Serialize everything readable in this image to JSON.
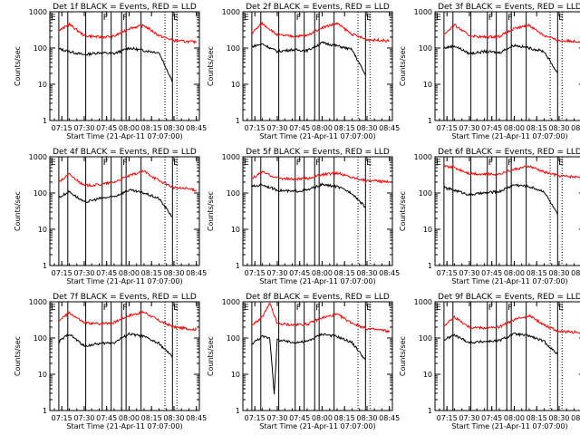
{
  "figure": {
    "background": "#ffffff",
    "axis_color": "#000000"
  },
  "shared": {
    "xlabel": "Start Time (21-Apr-11 07:07:00)",
    "ylabel": "Counts/sec",
    "x_ticks": [
      "07:15",
      "07:30",
      "07:45",
      "08:00",
      "08:15",
      "08:30",
      "08:45"
    ],
    "y_ticks": [
      "1",
      "10",
      "100",
      "1000"
    ],
    "xlim": [
      "07:07",
      "08:47"
    ],
    "ylim": [
      1,
      1000
    ],
    "y_scale": "log",
    "grid": false,
    "series_colors": {
      "events": "#000000",
      "lld": "#ff0000"
    }
  },
  "chart_data": [
    {
      "type": "line",
      "title": "Det 1f BLACK = Events, RED = LLD",
      "markers": [
        {
          "label": "E",
          "time": "07:07"
        },
        {
          "label": "F",
          "time": "07:42"
        },
        {
          "label": "F",
          "time": "07:55"
        },
        {
          "label": "E",
          "time": "08:29"
        }
      ],
      "vertical_lines": [
        "07:13",
        "07:19",
        "07:31",
        "07:42",
        "07:48",
        "07:55",
        "07:58",
        "08:08",
        "08:29"
      ],
      "dotted_lines": [
        "08:24",
        "08:32"
      ],
      "series": [
        {
          "key": "events",
          "x": [
            "07:13",
            "07:20",
            "07:30",
            "07:40",
            "07:50",
            "08:00",
            "08:10",
            "08:20",
            "08:29"
          ],
          "y": [
            95,
            80,
            65,
            75,
            70,
            100,
            85,
            75,
            12
          ]
        },
        {
          "key": "lld",
          "x": [
            "07:13",
            "07:20",
            "07:30",
            "07:40",
            "07:50",
            "08:00",
            "08:10",
            "08:20",
            "08:30",
            "08:40",
            "08:45"
          ],
          "y": [
            300,
            450,
            220,
            200,
            210,
            350,
            420,
            220,
            160,
            150,
            145
          ]
        }
      ]
    },
    {
      "type": "line",
      "title": "Det 2f BLACK = Events, RED = LLD",
      "markers": [
        {
          "label": "E",
          "time": "07:07"
        },
        {
          "label": "F",
          "time": "07:42"
        },
        {
          "label": "F",
          "time": "07:55"
        },
        {
          "label": "E",
          "time": "08:29"
        }
      ],
      "vertical_lines": [
        "07:13",
        "07:19",
        "07:31",
        "07:42",
        "07:48",
        "07:55",
        "07:58",
        "08:08",
        "08:29"
      ],
      "dotted_lines": [
        "08:24",
        "08:32"
      ],
      "series": [
        {
          "key": "events",
          "x": [
            "07:13",
            "07:20",
            "07:30",
            "07:40",
            "07:50",
            "08:00",
            "08:10",
            "08:20",
            "08:29"
          ],
          "y": [
            110,
            130,
            80,
            90,
            85,
            140,
            115,
            90,
            18
          ]
        },
        {
          "key": "lld",
          "x": [
            "07:13",
            "07:20",
            "07:30",
            "07:40",
            "07:50",
            "08:00",
            "08:10",
            "08:20",
            "08:30",
            "08:40",
            "08:45"
          ],
          "y": [
            260,
            480,
            230,
            210,
            220,
            370,
            480,
            240,
            170,
            165,
            155
          ]
        }
      ]
    },
    {
      "type": "line",
      "title": "Det 3f BLACK = Events, RED = LLD",
      "markers": [
        {
          "label": "E",
          "time": "07:07"
        },
        {
          "label": "F",
          "time": "07:42"
        },
        {
          "label": "F",
          "time": "07:55"
        },
        {
          "label": "E",
          "time": "08:29"
        }
      ],
      "vertical_lines": [
        "07:13",
        "07:19",
        "07:31",
        "07:42",
        "07:48",
        "07:55",
        "07:58",
        "08:08",
        "08:29"
      ],
      "dotted_lines": [
        "08:24",
        "08:32"
      ],
      "series": [
        {
          "key": "events",
          "x": [
            "07:13",
            "07:20",
            "07:30",
            "07:40",
            "07:50",
            "08:00",
            "08:10",
            "08:20",
            "08:29"
          ],
          "y": [
            100,
            115,
            70,
            80,
            75,
            120,
            100,
            80,
            20
          ]
        },
        {
          "key": "lld",
          "x": [
            "07:13",
            "07:20",
            "07:30",
            "07:40",
            "07:50",
            "08:00",
            "08:10",
            "08:20",
            "08:30",
            "08:40",
            "08:45"
          ],
          "y": [
            240,
            430,
            220,
            200,
            210,
            340,
            430,
            220,
            160,
            155,
            150
          ]
        }
      ]
    },
    {
      "type": "line",
      "title": "Det 4f BLACK = Events, RED = LLD",
      "markers": [
        {
          "label": "E",
          "time": "07:07"
        },
        {
          "label": "F",
          "time": "07:42"
        },
        {
          "label": "F",
          "time": "07:55"
        },
        {
          "label": "E",
          "time": "08:29"
        }
      ],
      "vertical_lines": [
        "07:13",
        "07:19",
        "07:31",
        "07:42",
        "07:48",
        "07:55",
        "07:58",
        "08:08",
        "08:29"
      ],
      "dotted_lines": [
        "08:24",
        "08:32"
      ],
      "series": [
        {
          "key": "events",
          "x": [
            "07:13",
            "07:20",
            "07:30",
            "07:40",
            "07:50",
            "08:00",
            "08:10",
            "08:20",
            "08:29"
          ],
          "y": [
            75,
            110,
            55,
            70,
            80,
            120,
            100,
            70,
            22
          ]
        },
        {
          "key": "lld",
          "x": [
            "07:13",
            "07:20",
            "07:30",
            "07:40",
            "07:50",
            "08:00",
            "08:10",
            "08:20",
            "08:30",
            "08:40",
            "08:45"
          ],
          "y": [
            200,
            330,
            160,
            170,
            200,
            300,
            400,
            220,
            140,
            130,
            120
          ]
        }
      ]
    },
    {
      "type": "line",
      "title": "Det 5f BLACK = Events, RED = LLD",
      "markers": [
        {
          "label": "E",
          "time": "07:07"
        },
        {
          "label": "F",
          "time": "07:42"
        },
        {
          "label": "F",
          "time": "07:55"
        },
        {
          "label": "E",
          "time": "08:29"
        }
      ],
      "vertical_lines": [
        "07:13",
        "07:19",
        "07:31",
        "07:42",
        "07:48",
        "07:55",
        "07:58",
        "08:08",
        "08:29"
      ],
      "dotted_lines": [
        "08:24",
        "08:32"
      ],
      "series": [
        {
          "key": "events",
          "x": [
            "07:13",
            "07:20",
            "07:30",
            "07:40",
            "07:50",
            "08:00",
            "08:10",
            "08:20",
            "08:29"
          ],
          "y": [
            150,
            170,
            120,
            110,
            120,
            170,
            150,
            100,
            40
          ]
        },
        {
          "key": "lld",
          "x": [
            "07:13",
            "07:20",
            "07:30",
            "07:40",
            "07:50",
            "08:00",
            "08:10",
            "08:20",
            "08:30",
            "08:40",
            "08:45"
          ],
          "y": [
            250,
            380,
            260,
            240,
            250,
            320,
            360,
            270,
            220,
            210,
            210
          ]
        }
      ]
    },
    {
      "type": "line",
      "title": "Det 6f BLACK = Events, RED = LLD",
      "markers": [
        {
          "label": "E",
          "time": "07:07"
        },
        {
          "label": "F",
          "time": "07:42"
        },
        {
          "label": "F",
          "time": "07:55"
        },
        {
          "label": "E",
          "time": "08:29"
        }
      ],
      "vertical_lines": [
        "07:13",
        "07:19",
        "07:31",
        "07:42",
        "07:48",
        "07:55",
        "07:58",
        "08:08",
        "08:29"
      ],
      "dotted_lines": [
        "08:24",
        "08:32"
      ],
      "series": [
        {
          "key": "events",
          "x": [
            "07:13",
            "07:20",
            "07:30",
            "07:40",
            "07:50",
            "08:00",
            "08:10",
            "08:20",
            "08:29"
          ],
          "y": [
            140,
            120,
            90,
            100,
            110,
            170,
            150,
            110,
            25
          ]
        },
        {
          "key": "lld",
          "x": [
            "07:13",
            "07:20",
            "07:30",
            "07:40",
            "07:50",
            "08:00",
            "08:10",
            "08:20",
            "08:30",
            "08:40",
            "08:45"
          ],
          "y": [
            550,
            500,
            350,
            330,
            340,
            450,
            550,
            380,
            300,
            280,
            280
          ]
        }
      ]
    },
    {
      "type": "line",
      "title": "Det 7f BLACK = Events, RED = LLD",
      "markers": [
        {
          "label": "E",
          "time": "07:07"
        },
        {
          "label": "F",
          "time": "07:42"
        },
        {
          "label": "F",
          "time": "07:55"
        },
        {
          "label": "E",
          "time": "08:29"
        }
      ],
      "vertical_lines": [
        "07:13",
        "07:19",
        "07:31",
        "07:42",
        "07:48",
        "07:55",
        "07:58",
        "08:08",
        "08:29"
      ],
      "dotted_lines": [
        "08:24",
        "08:32"
      ],
      "series": [
        {
          "key": "events",
          "x": [
            "07:13",
            "07:20",
            "07:30",
            "07:40",
            "07:50",
            "08:00",
            "08:10",
            "08:20",
            "08:29"
          ],
          "y": [
            80,
            130,
            60,
            70,
            75,
            130,
            110,
            70,
            30
          ]
        },
        {
          "key": "lld",
          "x": [
            "07:13",
            "07:20",
            "07:30",
            "07:40",
            "07:50",
            "08:00",
            "08:10",
            "08:20",
            "08:30",
            "08:40",
            "08:45"
          ],
          "y": [
            300,
            500,
            260,
            250,
            270,
            420,
            520,
            300,
            200,
            180,
            170
          ]
        }
      ]
    },
    {
      "type": "line",
      "title": "Det 8f BLACK = Events, RED = LLD",
      "markers": [
        {
          "label": "E",
          "time": "07:07"
        },
        {
          "label": "F",
          "time": "07:42"
        },
        {
          "label": "F",
          "time": "07:55"
        },
        {
          "label": "E",
          "time": "08:29"
        }
      ],
      "vertical_lines": [
        "07:13",
        "07:19",
        "07:31",
        "07:42",
        "07:48",
        "07:55",
        "07:58",
        "08:08",
        "08:29"
      ],
      "dotted_lines": [
        "08:24",
        "08:32"
      ],
      "series": [
        {
          "key": "events",
          "x": [
            "07:13",
            "07:20",
            "07:25",
            "07:28",
            "07:30",
            "07:40",
            "07:50",
            "08:00",
            "08:10",
            "08:20",
            "08:29"
          ],
          "y": [
            70,
            110,
            100,
            3,
            90,
            75,
            80,
            130,
            110,
            75,
            25
          ]
        },
        {
          "key": "lld",
          "x": [
            "07:13",
            "07:20",
            "07:25",
            "07:30",
            "07:40",
            "07:50",
            "08:00",
            "08:10",
            "08:20",
            "08:30",
            "08:40",
            "08:45"
          ],
          "y": [
            220,
            380,
            900,
            250,
            230,
            240,
            360,
            450,
            260,
            180,
            165,
            150
          ]
        }
      ]
    },
    {
      "type": "line",
      "title": "Det 9f BLACK = Events, RED = LLD",
      "markers": [
        {
          "label": "E",
          "time": "07:07"
        },
        {
          "label": "F",
          "time": "07:42"
        },
        {
          "label": "F",
          "time": "07:55"
        },
        {
          "label": "E",
          "time": "08:29"
        }
      ],
      "vertical_lines": [
        "07:13",
        "07:19",
        "07:31",
        "07:42",
        "07:48",
        "07:55",
        "07:58",
        "08:08",
        "08:29"
      ],
      "dotted_lines": [
        "08:24",
        "08:32"
      ],
      "series": [
        {
          "key": "events",
          "x": [
            "07:13",
            "07:20",
            "07:30",
            "07:40",
            "07:50",
            "08:00",
            "08:10",
            "08:20",
            "08:29"
          ],
          "y": [
            90,
            120,
            75,
            80,
            85,
            130,
            115,
            80,
            35
          ]
        },
        {
          "key": "lld",
          "x": [
            "07:13",
            "07:20",
            "07:30",
            "07:40",
            "07:50",
            "08:00",
            "08:10",
            "08:20",
            "08:30",
            "08:40",
            "08:45"
          ],
          "y": [
            220,
            380,
            200,
            190,
            200,
            320,
            420,
            230,
            150,
            145,
            140
          ]
        }
      ]
    }
  ]
}
